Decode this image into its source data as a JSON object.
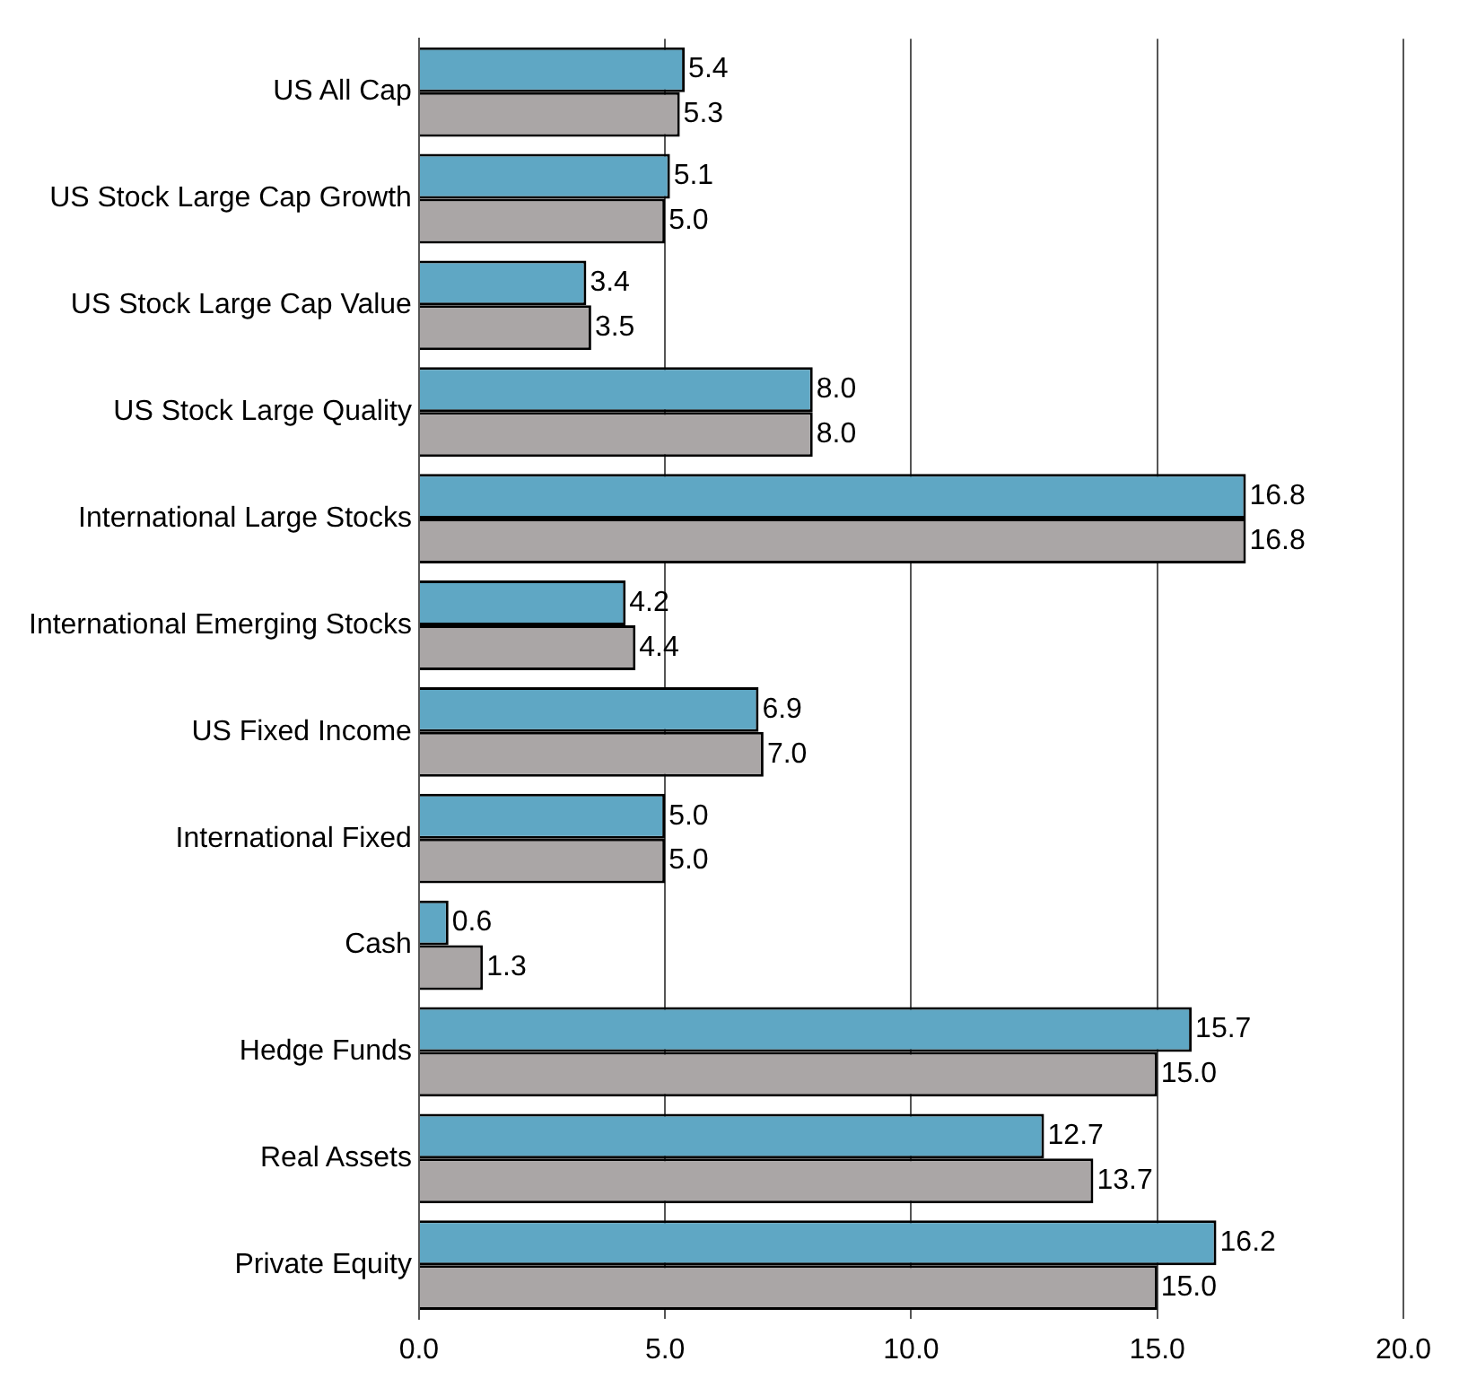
{
  "chart_data": {
    "type": "bar",
    "orientation": "horizontal",
    "categories": [
      "US All Cap",
      "US Stock Large Cap Growth",
      "US Stock Large Cap Value",
      "US Stock Large Quality",
      "International Large Stocks",
      "International Emerging Stocks",
      "US Fixed Income",
      "International Fixed",
      "Cash",
      "Hedge Funds",
      "Real Assets",
      "Private Equity"
    ],
    "series": [
      {
        "color": "#5fa7c4",
        "values": [
          5.4,
          5.1,
          3.4,
          8.0,
          16.8,
          4.2,
          6.9,
          5.0,
          0.6,
          15.7,
          12.7,
          16.2
        ],
        "value_labels": [
          "5.4",
          "5.1",
          "3.4",
          "8.0",
          "16.8",
          "4.2",
          "6.9",
          "5.0",
          "0.6",
          "15.7",
          "12.7",
          "16.2"
        ]
      },
      {
        "color": "#aaa6a6",
        "values": [
          5.3,
          5.0,
          3.5,
          8.0,
          16.8,
          4.4,
          7.0,
          5.0,
          1.3,
          15.0,
          13.7,
          15.0
        ],
        "value_labels": [
          "5.3",
          "5.0",
          "3.5",
          "8.0",
          "16.8",
          "4.4",
          "7.0",
          "5.0",
          "1.3",
          "15.0",
          "13.7",
          "15.0"
        ]
      }
    ],
    "xlim": [
      0,
      20
    ],
    "xticks": [
      {
        "value": 0,
        "label": "0.0"
      },
      {
        "value": 5,
        "label": "5.0"
      },
      {
        "value": 10,
        "label": "10.0"
      },
      {
        "value": 15,
        "label": "15.0"
      },
      {
        "value": 20,
        "label": "20.0"
      }
    ],
    "grid": "x",
    "legend": false
  }
}
